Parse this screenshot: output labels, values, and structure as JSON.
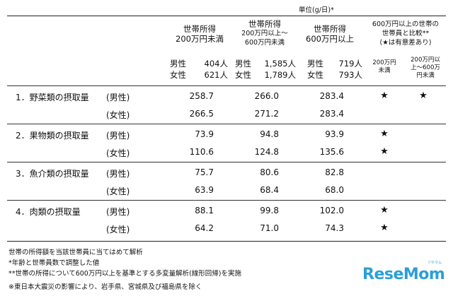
{
  "unit_label": "単位(g/日)*",
  "header": {
    "col1": [
      "世帯所得",
      "200万円未満"
    ],
    "col2": [
      "世帯所得",
      "200万円以上～",
      "600万円未満"
    ],
    "col3": [
      "世帯所得",
      "600万円以上"
    ],
    "compare": [
      "600万円以上の世帯の",
      "世帯員と比較**",
      "(★は有意差あり)"
    ],
    "compare_sub1": [
      "200万円",
      "未満"
    ],
    "compare_sub2": [
      "200万円以",
      "上～600万",
      "円未満"
    ]
  },
  "counts": {
    "male_label": "男性",
    "female_label": "女性",
    "col1": {
      "male": "404人",
      "female": "621人"
    },
    "col2": {
      "male": "1,585人",
      "female": "1,789人"
    },
    "col3": {
      "male": "719人",
      "female": "793人"
    }
  },
  "rows": [
    {
      "category": "1．野菜類の摂取量",
      "male_label": "(男性)",
      "female_label": "(女性)",
      "male": [
        "258.7",
        "266.0",
        "283.4"
      ],
      "female": [
        "266.5",
        "271.2",
        "283.4"
      ],
      "male_star": [
        "★",
        "★"
      ],
      "female_star": [
        "",
        ""
      ]
    },
    {
      "category": "2．果物類の摂取量",
      "male_label": "(男性)",
      "female_label": "(女性)",
      "male": [
        "73.9",
        "94.8",
        "93.9"
      ],
      "female": [
        "110.6",
        "124.8",
        "135.6"
      ],
      "male_star": [
        "★",
        ""
      ],
      "female_star": [
        "★",
        ""
      ]
    },
    {
      "category": "3．魚介類の摂取量",
      "male_label": "(男性)",
      "female_label": "(女性)",
      "male": [
        "75.7",
        "80.6",
        "82.8"
      ],
      "female": [
        "63.9",
        "68.4",
        "68.0"
      ],
      "male_star": [
        "",
        ""
      ],
      "female_star": [
        "",
        ""
      ]
    },
    {
      "category": "4．肉類の摂取量",
      "male_label": "(男性)",
      "female_label": "(女性)",
      "male": [
        "88.1",
        "99.8",
        "102.0"
      ],
      "female": [
        "64.2",
        "71.0",
        "74.3"
      ],
      "male_star": [
        "★",
        ""
      ],
      "female_star": [
        "★",
        ""
      ]
    }
  ],
  "notes": [
    "世帯の所得額を当該世帯員に当てはめて解析",
    "*年齢と世帯員数で調整した値",
    "**世帯の所得について600万円以上を基準とする多変量解析(線形回帰)を実施",
    "※東日本大震災の影響により、岩手県、宮城県及び福島県を除く"
  ],
  "logo": {
    "text": "ReseMom",
    "sub": "リセマム"
  }
}
